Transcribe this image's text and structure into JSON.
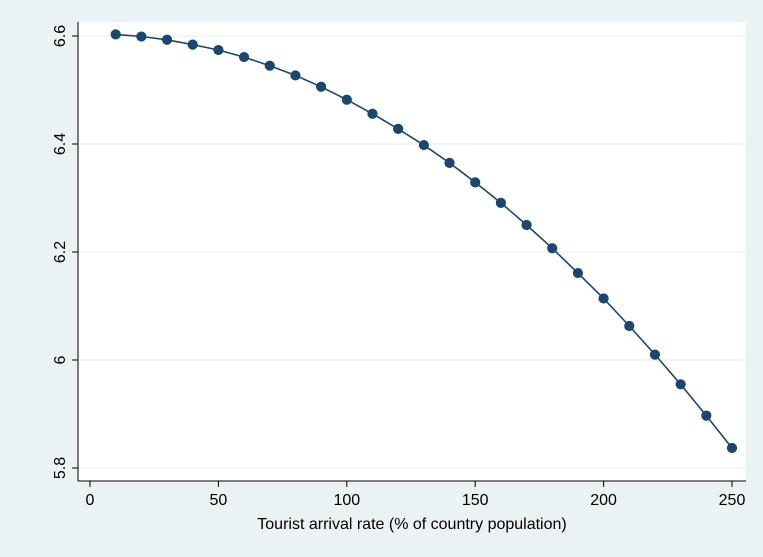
{
  "chart_data": {
    "type": "line",
    "title": "",
    "xlabel": "Tourist arrival rate (% of country population)",
    "ylabel": "",
    "xlim": [
      0,
      250
    ],
    "ylim": [
      5.8,
      6.6
    ],
    "xticks": [
      0,
      50,
      100,
      150,
      200,
      250
    ],
    "xtick_labels": [
      "0",
      "50",
      "100",
      "150",
      "200",
      "250"
    ],
    "yticks": [
      5.8,
      6.0,
      6.2,
      6.4,
      6.6
    ],
    "ytick_labels": [
      "5.8",
      "6",
      "6.2",
      "6.4",
      "6.6"
    ],
    "grid": true,
    "markers": true,
    "series": [
      {
        "x": [
          10,
          20,
          30,
          40,
          50,
          60,
          70,
          80,
          90,
          100,
          110,
          120,
          130,
          140,
          150,
          160,
          170,
          180,
          190,
          200,
          210,
          220,
          230,
          240,
          250
        ],
        "values": [
          6.603,
          6.599,
          6.593,
          6.584,
          6.574,
          6.561,
          6.545,
          6.527,
          6.506,
          6.482,
          6.456,
          6.428,
          6.398,
          6.365,
          6.329,
          6.291,
          6.25,
          6.207,
          6.161,
          6.114,
          6.063,
          6.01,
          5.955,
          5.897,
          5.837
        ]
      }
    ],
    "colors": {
      "line": "#1a476f",
      "marker": "#1a476f",
      "plot_bg": "#ffffff",
      "outer_bg": "#eaf2f3",
      "grid": "#eaf2f3"
    }
  }
}
